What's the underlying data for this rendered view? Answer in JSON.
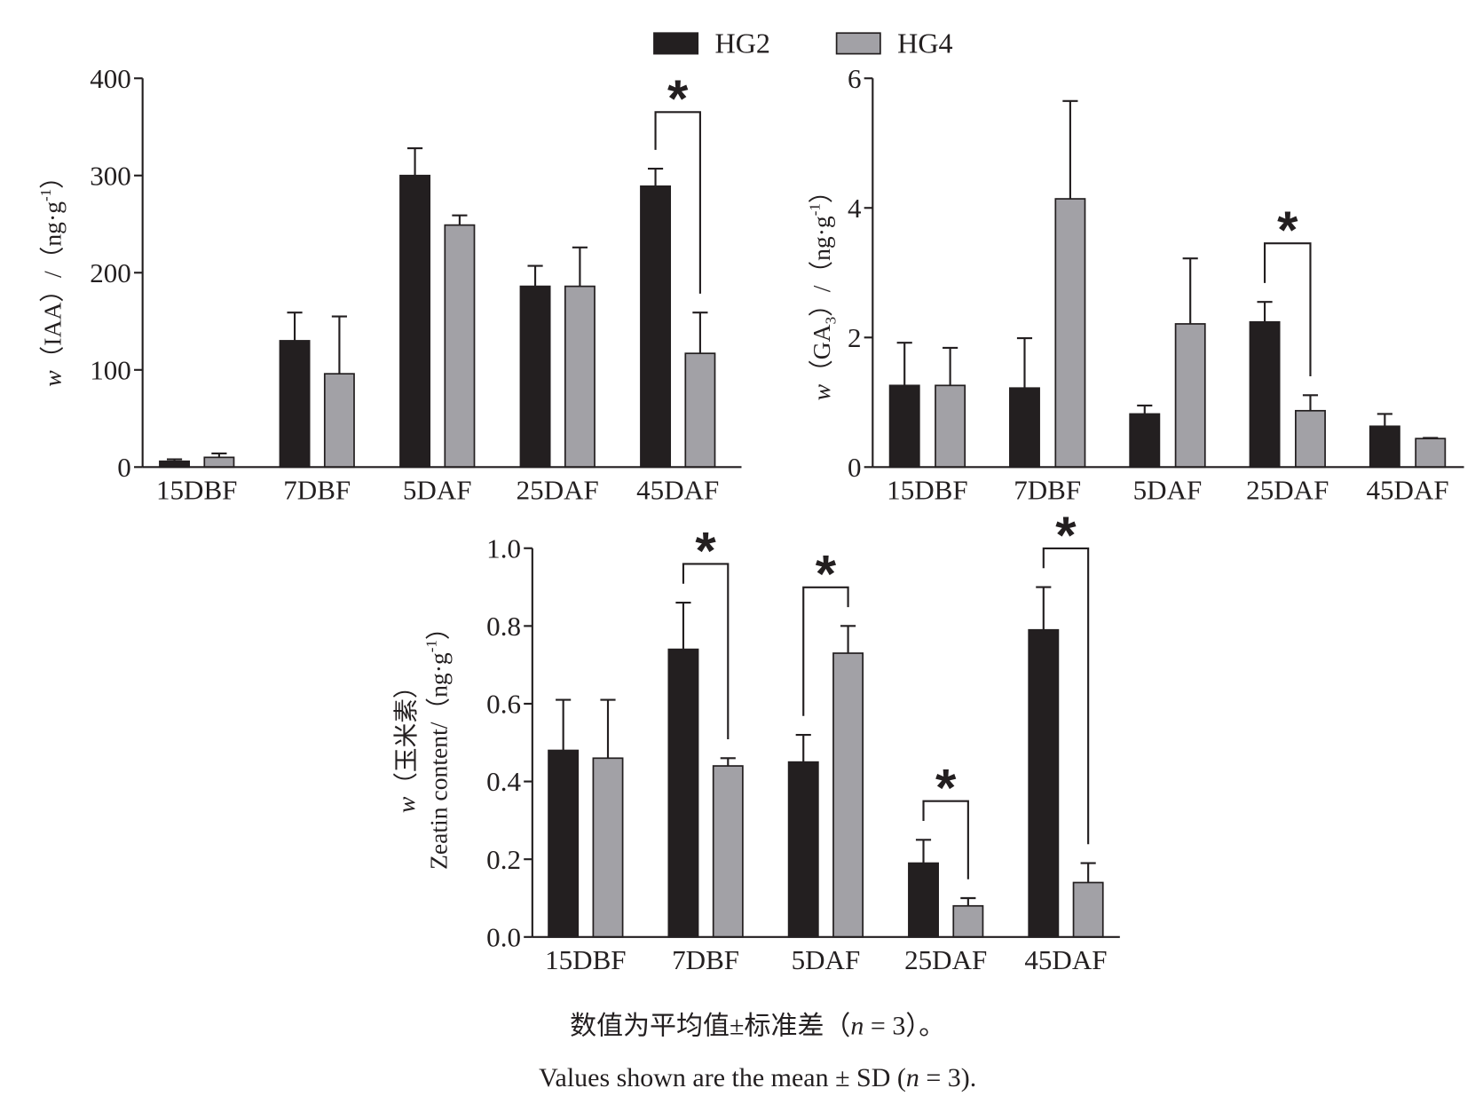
{
  "legend": {
    "position": "top-center",
    "items": [
      {
        "label": "HG2",
        "color": "#231f20"
      },
      {
        "label": "HG4",
        "color": "#a2a1a6"
      }
    ]
  },
  "chart_data": [
    {
      "type": "bar",
      "ylabel": {
        "italic": "w",
        "main": "（IAA）/（ng·g",
        "sup": "-1",
        "close": "）"
      },
      "categories": [
        "15DBF",
        "7DBF",
        "5DAF",
        "25DAF",
        "45DAF"
      ],
      "series": [
        {
          "name": "HG2",
          "values": [
            6,
            130,
            300,
            186,
            289
          ],
          "sd": [
            2,
            29,
            28,
            21,
            18
          ]
        },
        {
          "name": "HG4",
          "values": [
            10,
            96,
            249,
            186,
            117
          ],
          "sd": [
            4,
            59,
            10,
            40,
            42
          ]
        }
      ],
      "ylim": [
        0,
        400
      ],
      "yticks": [
        "0",
        "100",
        "200",
        "300",
        "400"
      ],
      "grid": false,
      "significance": [
        {
          "category": "45DAF",
          "label": "*"
        }
      ]
    },
    {
      "type": "bar",
      "ylabel": {
        "italic": "w",
        "main": "（GA",
        "sub": "3",
        "mid": "）/（ng·g",
        "sup": "-1",
        "close": "）"
      },
      "categories": [
        "15DBF",
        "7DBF",
        "5DAF",
        "25DAF",
        "45DAF"
      ],
      "series": [
        {
          "name": "HG2",
          "values": [
            1.26,
            1.22,
            0.82,
            2.24,
            0.63
          ],
          "sd": [
            0.66,
            0.77,
            0.13,
            0.31,
            0.19
          ]
        },
        {
          "name": "HG4",
          "values": [
            1.26,
            4.14,
            2.21,
            0.87,
            0.44
          ],
          "sd": [
            0.58,
            1.51,
            1.01,
            0.24,
            0.01
          ]
        }
      ],
      "ylim": [
        0,
        6
      ],
      "yticks": [
        "0",
        "2",
        "4",
        "6"
      ],
      "grid": false,
      "significance": [
        {
          "category": "25DAF",
          "label": "*"
        }
      ]
    },
    {
      "type": "bar",
      "ylabel": {
        "line1": {
          "italic": "w",
          "main": "（玉米素）"
        },
        "line2": {
          "main": "Zeatin content/（ng·g",
          "sup": "-1",
          "close": "）"
        }
      },
      "categories": [
        "15DBF",
        "7DBF",
        "5DAF",
        "25DAF",
        "45DAF"
      ],
      "series": [
        {
          "name": "HG2",
          "values": [
            0.48,
            0.74,
            0.45,
            0.19,
            0.79
          ],
          "sd": [
            0.13,
            0.12,
            0.07,
            0.06,
            0.11
          ]
        },
        {
          "name": "HG4",
          "values": [
            0.46,
            0.44,
            0.73,
            0.08,
            0.14
          ],
          "sd": [
            0.15,
            0.02,
            0.07,
            0.02,
            0.05
          ]
        }
      ],
      "ylim": [
        0,
        1
      ],
      "yticks": [
        "0.0",
        "0.2",
        "0.4",
        "0.6",
        "0.8",
        "1.0"
      ],
      "grid": false,
      "significance": [
        {
          "category": "7DBF",
          "label": "*"
        },
        {
          "category": "5DAF",
          "label": "*"
        },
        {
          "category": "25DAF",
          "label": "*"
        },
        {
          "category": "45DAF",
          "label": "*"
        }
      ]
    }
  ],
  "caption": {
    "zh": {
      "before": "数值为平均值±标准差（",
      "italic": "n",
      "after": " = 3）。"
    },
    "en": {
      "before": "Values shown are the mean ± SD (",
      "italic": "n",
      "after": " = 3)."
    }
  }
}
